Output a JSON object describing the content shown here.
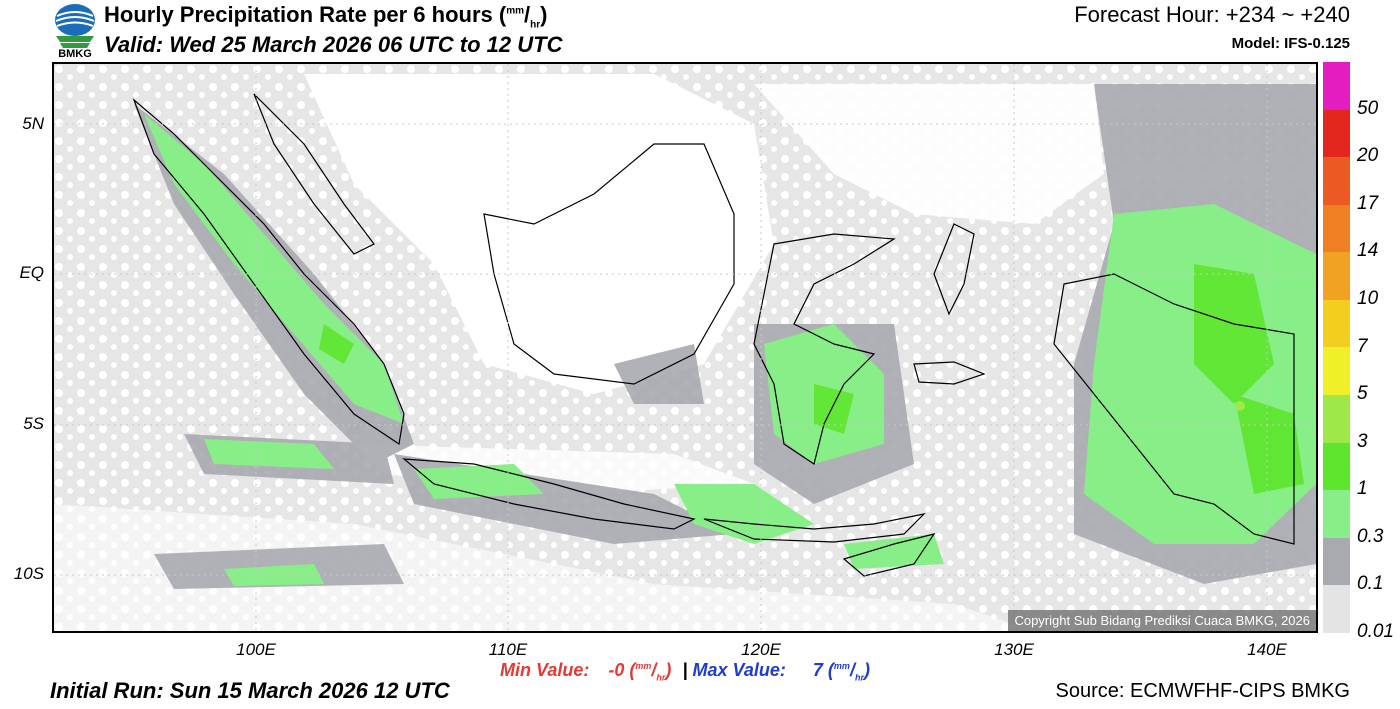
{
  "header": {
    "logo_text": "BMKG",
    "title": "Hourly Precipitation Rate per 6 hours",
    "title_unit_sup": "mm",
    "title_unit_sub": "hr",
    "valid": "Valid: Wed 25 March 2026 06 UTC to 12 UTC",
    "forecast_hour": "Forecast Hour: +234 ~ +240",
    "model": "Model: IFS-0.125"
  },
  "map": {
    "lat_labels": [
      "5N",
      "EQ",
      "5S",
      "10S"
    ],
    "lon_labels": [
      "100E",
      "110E",
      "120E",
      "130E",
      "140E"
    ],
    "copyright": "Copyright Sub Bidang Prediksi Cuaca BMKG, 2026"
  },
  "colorbar": {
    "labels": [
      "50",
      "20",
      "17",
      "14",
      "10",
      "7",
      "5",
      "3",
      "1",
      "0.3",
      "0.1",
      "0.01"
    ],
    "colors": [
      "#e21ec0",
      "#e3261e",
      "#eb5a23",
      "#ef7f22",
      "#f2a223",
      "#f2cf1f",
      "#f0f028",
      "#9fe84a",
      "#5ee62e",
      "#88ee88",
      "#a8aab0",
      "#e4e4e4"
    ]
  },
  "footer": {
    "min_label": "Min Value:",
    "min_value": "-0",
    "max_label": "Max Value:",
    "max_value": "7",
    "unit_sup": "mm",
    "unit_sub": "hr",
    "separator": "|",
    "initial_run": "Initial Run: Sun 15 March 2026 12 UTC",
    "source": "Source: ECMWFHF-CIPS BMKG"
  }
}
